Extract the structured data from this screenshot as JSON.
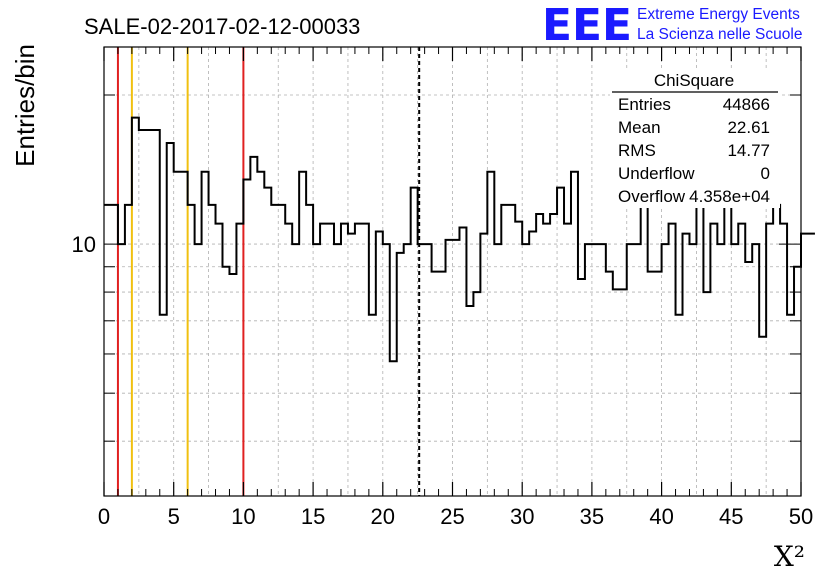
{
  "chart_data": {
    "type": "histogram",
    "title": "SALE-02-2017-02-12-00033",
    "xlabel": "X²",
    "ylabel": "Entries/bin",
    "xlim": [
      0,
      50
    ],
    "ylim": [
      3.1,
      25
    ],
    "log_y": true,
    "grid": true,
    "bin_width": 0.5,
    "x_ticks": [
      {
        "value": 0,
        "label": "0"
      },
      {
        "value": 5,
        "label": "5"
      },
      {
        "value": 10,
        "label": "10"
      },
      {
        "value": 15,
        "label": "15"
      },
      {
        "value": 20,
        "label": "20"
      },
      {
        "value": 25,
        "label": "25"
      },
      {
        "value": 30,
        "label": "30"
      },
      {
        "value": 35,
        "label": "35"
      },
      {
        "value": 40,
        "label": "40"
      },
      {
        "value": 45,
        "label": "45"
      },
      {
        "value": 50,
        "label": "50"
      }
    ],
    "y_tick_labels": [
      {
        "value": 10,
        "label": "10"
      }
    ],
    "values": [
      12,
      12,
      10,
      12,
      18,
      17,
      17,
      17,
      7.2,
      16,
      14,
      14,
      12,
      10,
      14,
      12,
      11,
      9,
      8.7,
      11,
      13.5,
      15,
      14,
      13,
      12,
      12,
      11,
      10,
      14,
      12,
      10,
      11,
      11,
      10,
      11,
      10.5,
      11,
      11,
      7.2,
      10.6,
      10,
      5.8,
      9.6,
      10,
      13,
      10,
      10,
      8.8,
      8.8,
      10.2,
      10.2,
      10.8,
      7.5,
      8,
      10.5,
      14,
      10,
      12,
      12,
      11.1,
      10,
      10.6,
      11.5,
      11,
      11.5,
      13,
      11,
      14,
      8.5,
      10,
      10,
      10,
      8.8,
      8.1,
      8.1,
      10,
      10,
      14,
      8.8,
      8.8,
      10,
      11,
      7.2,
      10.5,
      10,
      13,
      8,
      11,
      10,
      12,
      10,
      11,
      9.2,
      10,
      6.5,
      11,
      12,
      11,
      7.2,
      9,
      10.5,
      10.5
    ],
    "vertical_lines": [
      {
        "x": 1,
        "color": "#e02020",
        "style": "solid"
      },
      {
        "x": 2,
        "color": "#f0c010",
        "style": "solid"
      },
      {
        "x": 6,
        "color": "#f0c010",
        "style": "solid"
      },
      {
        "x": 10,
        "color": "#e02020",
        "style": "solid"
      },
      {
        "x": 22.61,
        "color": "#000000",
        "style": "dashed"
      }
    ]
  },
  "stats_box": {
    "name": "ChiSquare",
    "rows": [
      {
        "label": "Entries",
        "value": "44866"
      },
      {
        "label": "Mean",
        "value": "22.61"
      },
      {
        "label": "RMS",
        "value": "14.77"
      },
      {
        "label": "Underflow",
        "value": "0"
      },
      {
        "label": "Overflow",
        "value": "4.358e+04"
      }
    ]
  },
  "logo": {
    "letters": "EEE",
    "line1": "Extreme Energy Events",
    "line2": "La Scienza nelle Scuole",
    "color": "#1a1aff"
  }
}
